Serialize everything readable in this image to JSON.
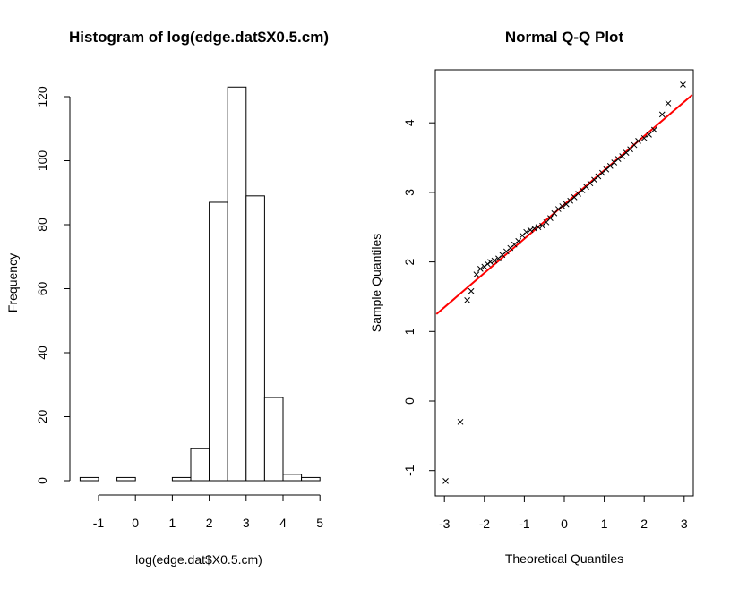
{
  "chart_data": [
    {
      "type": "bar",
      "title": "Histogram of log(edge.dat$X0.5.cm)",
      "xlabel": "log(edge.dat$X0.5.cm)",
      "ylabel": "Frequency",
      "xlim": [
        -1.5,
        5
      ],
      "ylim": [
        0,
        125
      ],
      "bin_width": 0.5,
      "bins": [
        {
          "x0": -1.5,
          "x1": -1.0,
          "count": 1
        },
        {
          "x0": -1.0,
          "x1": -0.5,
          "count": 0
        },
        {
          "x0": -0.5,
          "x1": 0.0,
          "count": 1
        },
        {
          "x0": 0.0,
          "x1": 0.5,
          "count": 0
        },
        {
          "x0": 0.5,
          "x1": 1.0,
          "count": 0
        },
        {
          "x0": 1.0,
          "x1": 1.5,
          "count": 1
        },
        {
          "x0": 1.5,
          "x1": 2.0,
          "count": 10
        },
        {
          "x0": 2.0,
          "x1": 2.5,
          "count": 87
        },
        {
          "x0": 2.5,
          "x1": 3.0,
          "count": 123
        },
        {
          "x0": 3.0,
          "x1": 3.5,
          "count": 89
        },
        {
          "x0": 3.5,
          "x1": 4.0,
          "count": 26
        },
        {
          "x0": 4.0,
          "x1": 4.5,
          "count": 2
        },
        {
          "x0": 4.5,
          "x1": 5.0,
          "count": 1
        }
      ],
      "x_ticks": [
        "-1",
        "0",
        "1",
        "2",
        "3",
        "4",
        "5"
      ],
      "y_ticks": [
        "0",
        "20",
        "40",
        "60",
        "80",
        "100",
        "120"
      ]
    },
    {
      "type": "scatter",
      "title": "Normal Q-Q Plot",
      "xlabel": "Theoretical Quantiles",
      "ylabel": "Sample Quantiles",
      "xlim": [
        -3.2,
        3.2
      ],
      "ylim": [
        -1.4,
        4.8
      ],
      "x_ticks": [
        "-3",
        "-2",
        "-1",
        "0",
        "1",
        "2",
        "3"
      ],
      "y_ticks": [
        "-1",
        "0",
        "1",
        "2",
        "3",
        "4"
      ],
      "marker": "x",
      "line": {
        "x": [
          -3.2,
          3.2
        ],
        "y": [
          1.25,
          4.4
        ],
        "color": "#ff0000"
      },
      "points": [
        [
          -2.97,
          -1.15
        ],
        [
          -2.6,
          -0.3
        ],
        [
          -2.43,
          1.45
        ],
        [
          -2.33,
          1.58
        ],
        [
          -2.2,
          1.82
        ],
        [
          -2.1,
          1.9
        ],
        [
          -2.0,
          1.93
        ],
        [
          -1.92,
          1.97
        ],
        [
          -1.85,
          2.0
        ],
        [
          -1.75,
          2.02
        ],
        [
          -1.65,
          2.05
        ],
        [
          -1.55,
          2.1
        ],
        [
          -1.45,
          2.15
        ],
        [
          -1.35,
          2.2
        ],
        [
          -1.25,
          2.25
        ],
        [
          -1.15,
          2.3
        ],
        [
          -1.05,
          2.38
        ],
        [
          -0.95,
          2.43
        ],
        [
          -0.85,
          2.46
        ],
        [
          -0.75,
          2.48
        ],
        [
          -0.65,
          2.5
        ],
        [
          -0.55,
          2.52
        ],
        [
          -0.45,
          2.57
        ],
        [
          -0.35,
          2.63
        ],
        [
          -0.25,
          2.7
        ],
        [
          -0.15,
          2.76
        ],
        [
          -0.05,
          2.8
        ],
        [
          0.05,
          2.83
        ],
        [
          0.15,
          2.88
        ],
        [
          0.25,
          2.93
        ],
        [
          0.35,
          2.98
        ],
        [
          0.45,
          3.03
        ],
        [
          0.55,
          3.08
        ],
        [
          0.65,
          3.13
        ],
        [
          0.75,
          3.18
        ],
        [
          0.85,
          3.23
        ],
        [
          0.95,
          3.28
        ],
        [
          1.05,
          3.33
        ],
        [
          1.15,
          3.38
        ],
        [
          1.25,
          3.43
        ],
        [
          1.35,
          3.48
        ],
        [
          1.45,
          3.52
        ],
        [
          1.55,
          3.57
        ],
        [
          1.65,
          3.62
        ],
        [
          1.75,
          3.68
        ],
        [
          1.85,
          3.74
        ],
        [
          2.0,
          3.78
        ],
        [
          2.12,
          3.83
        ],
        [
          2.25,
          3.9
        ],
        [
          2.45,
          4.12
        ],
        [
          2.6,
          4.28
        ],
        [
          2.97,
          4.55
        ]
      ]
    }
  ]
}
